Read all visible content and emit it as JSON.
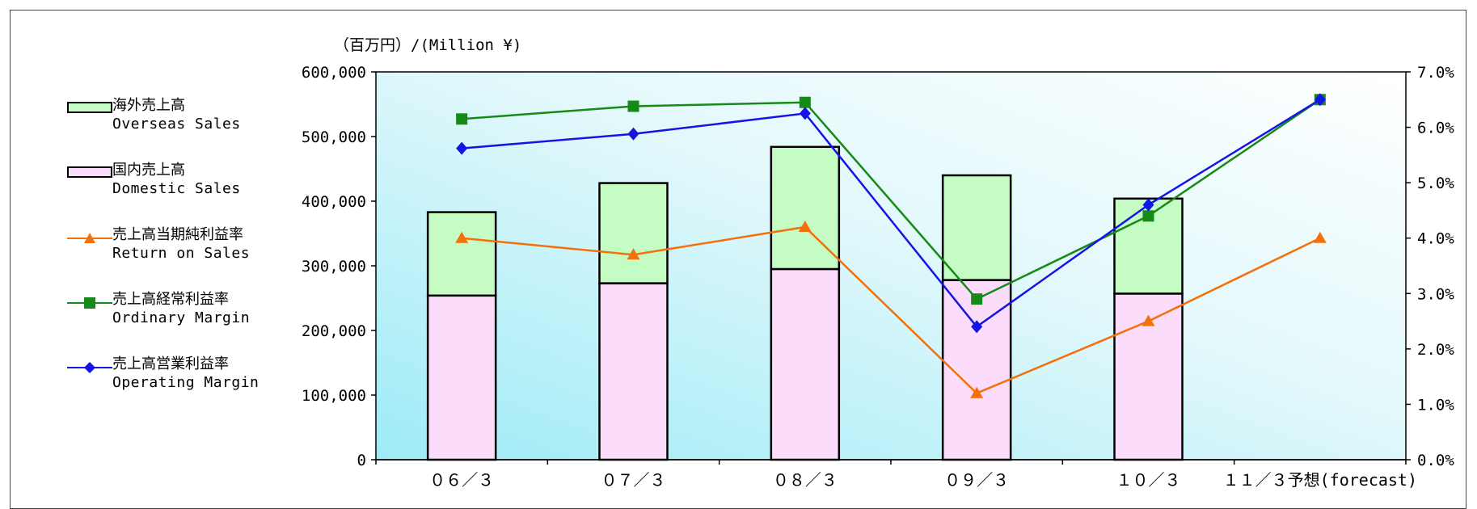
{
  "chart_data": {
    "type": "bar",
    "unit_label": "（百万円）/(Million ¥)",
    "categories": [
      "０６／３",
      "０７／３",
      "０８／３",
      "０９／３",
      "１０／３",
      "１１／３予想(forecast)"
    ],
    "y_left_ticks": [
      "0",
      "100,000",
      "200,000",
      "300,000",
      "400,000",
      "500,000",
      "600,000"
    ],
    "y_right_ticks": [
      "0.0%",
      "1.0%",
      "2.0%",
      "3.0%",
      "4.0%",
      "5.0%",
      "6.0%",
      "7.0%"
    ],
    "ylim_left": [
      0,
      600000
    ],
    "ylim_right": [
      0,
      7.0
    ],
    "bars": [
      {
        "name_ja": "海外売上高",
        "name_en": "Overseas Sales",
        "color": "#c4fcc4",
        "values": [
          129000,
          155000,
          189000,
          162000,
          147000,
          null
        ]
      },
      {
        "name_ja": "国内売上高",
        "name_en": "Domestic Sales",
        "color": "#fbdcfb",
        "values": [
          254000,
          273000,
          295000,
          278000,
          257000,
          null
        ]
      }
    ],
    "lines": [
      {
        "name_ja": "売上高当期純利益率",
        "name_en": "Return on Sales",
        "color": "#f4700a",
        "marker": "triangle",
        "values": [
          4.0,
          3.7,
          4.2,
          1.2,
          2.5,
          4.0
        ]
      },
      {
        "name_ja": "売上高経常利益率",
        "name_en": "Ordinary Margin",
        "color": "#168a16",
        "marker": "square",
        "values": [
          6.15,
          6.38,
          6.45,
          2.9,
          4.4,
          6.5
        ]
      },
      {
        "name_ja": "売上高営業利益率",
        "name_en": "Operating Margin",
        "color": "#1414e6",
        "marker": "diamond",
        "values": [
          5.62,
          5.88,
          6.25,
          2.4,
          4.6,
          6.5
        ]
      }
    ]
  }
}
